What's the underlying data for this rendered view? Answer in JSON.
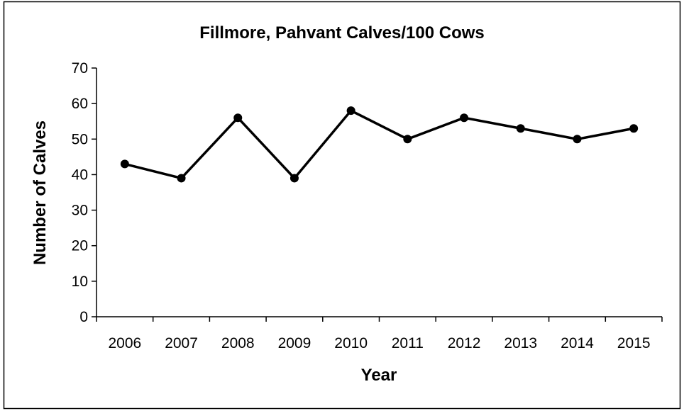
{
  "chart_data": {
    "type": "line",
    "title": "Fillmore, Pahvant Calves/100 Cows",
    "xlabel": "Year",
    "ylabel": "Number of Calves",
    "categories": [
      "2006",
      "2007",
      "2008",
      "2009",
      "2010",
      "2011",
      "2012",
      "2013",
      "2014",
      "2015"
    ],
    "series": [
      {
        "values": [
          43,
          39,
          56,
          39,
          58,
          50,
          56,
          53,
          50,
          53
        ]
      }
    ],
    "ylim": [
      0,
      70
    ],
    "yticks": [
      "0",
      "10",
      "20",
      "30",
      "40",
      "50",
      "60",
      "70"
    ],
    "grid": false,
    "legend": "none",
    "line_color": "#000000",
    "marker_color": "#000000"
  }
}
